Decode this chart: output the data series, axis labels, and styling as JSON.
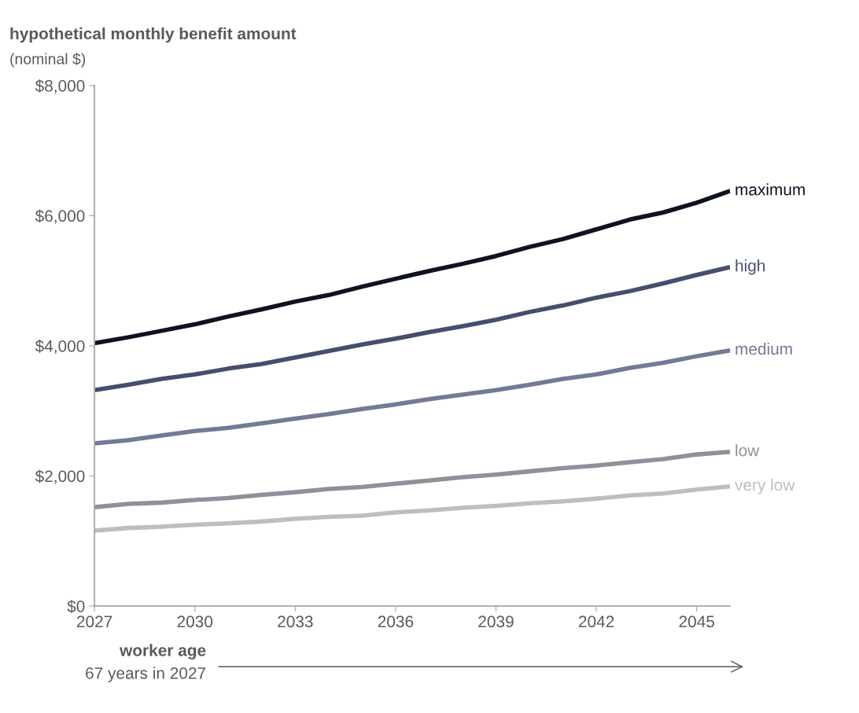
{
  "chart_data": {
    "type": "line",
    "ylabel": "hypothetical monthly benefit amount",
    "subtitle": "(nominal $)",
    "xlabel": "worker age",
    "annotations": [
      "67 years in 2027"
    ],
    "x": [
      2027,
      2028,
      2029,
      2030,
      2031,
      2032,
      2033,
      2034,
      2035,
      2036,
      2037,
      2038,
      2039,
      2040,
      2041,
      2042,
      2043,
      2044,
      2045,
      2046
    ],
    "series": [
      {
        "name": "maximum",
        "color": "#0d1321",
        "values": [
          4040,
          4130,
          4230,
          4330,
          4450,
          4560,
          4680,
          4780,
          4910,
          5030,
          5150,
          5260,
          5380,
          5520,
          5640,
          5790,
          5940,
          6050,
          6200,
          6380
        ]
      },
      {
        "name": "high",
        "color": "#464e6e",
        "values": [
          3320,
          3400,
          3490,
          3560,
          3650,
          3720,
          3820,
          3920,
          4020,
          4110,
          4210,
          4300,
          4400,
          4520,
          4620,
          4740,
          4840,
          4960,
          5090,
          5210
        ]
      },
      {
        "name": "medium",
        "color": "#737a94",
        "values": [
          2500,
          2550,
          2620,
          2690,
          2740,
          2810,
          2880,
          2950,
          3030,
          3100,
          3180,
          3250,
          3320,
          3400,
          3490,
          3560,
          3660,
          3740,
          3840,
          3930
        ]
      },
      {
        "name": "low",
        "color": "#8e9199",
        "values": [
          1520,
          1570,
          1590,
          1630,
          1660,
          1710,
          1750,
          1800,
          1830,
          1880,
          1930,
          1980,
          2020,
          2070,
          2120,
          2160,
          2210,
          2260,
          2330,
          2370
        ]
      },
      {
        "name": "very low",
        "color": "#bebebe",
        "values": [
          1160,
          1200,
          1220,
          1250,
          1270,
          1300,
          1340,
          1370,
          1390,
          1440,
          1470,
          1510,
          1540,
          1580,
          1610,
          1650,
          1700,
          1730,
          1790,
          1840
        ]
      }
    ],
    "xlim": [
      2027,
      2046
    ],
    "xticks": [
      2027,
      2030,
      2033,
      2036,
      2039,
      2042,
      2045
    ],
    "ylim": [
      0,
      8000
    ],
    "yticks": [
      {
        "value": 0,
        "label": "$0"
      },
      {
        "value": 2000,
        "label": "$2,000"
      },
      {
        "value": 4000,
        "label": "$4,000"
      },
      {
        "value": 6000,
        "label": "$6,000"
      },
      {
        "value": 8000,
        "label": "$8,000"
      }
    ],
    "grid": false,
    "line_style": "solid"
  }
}
